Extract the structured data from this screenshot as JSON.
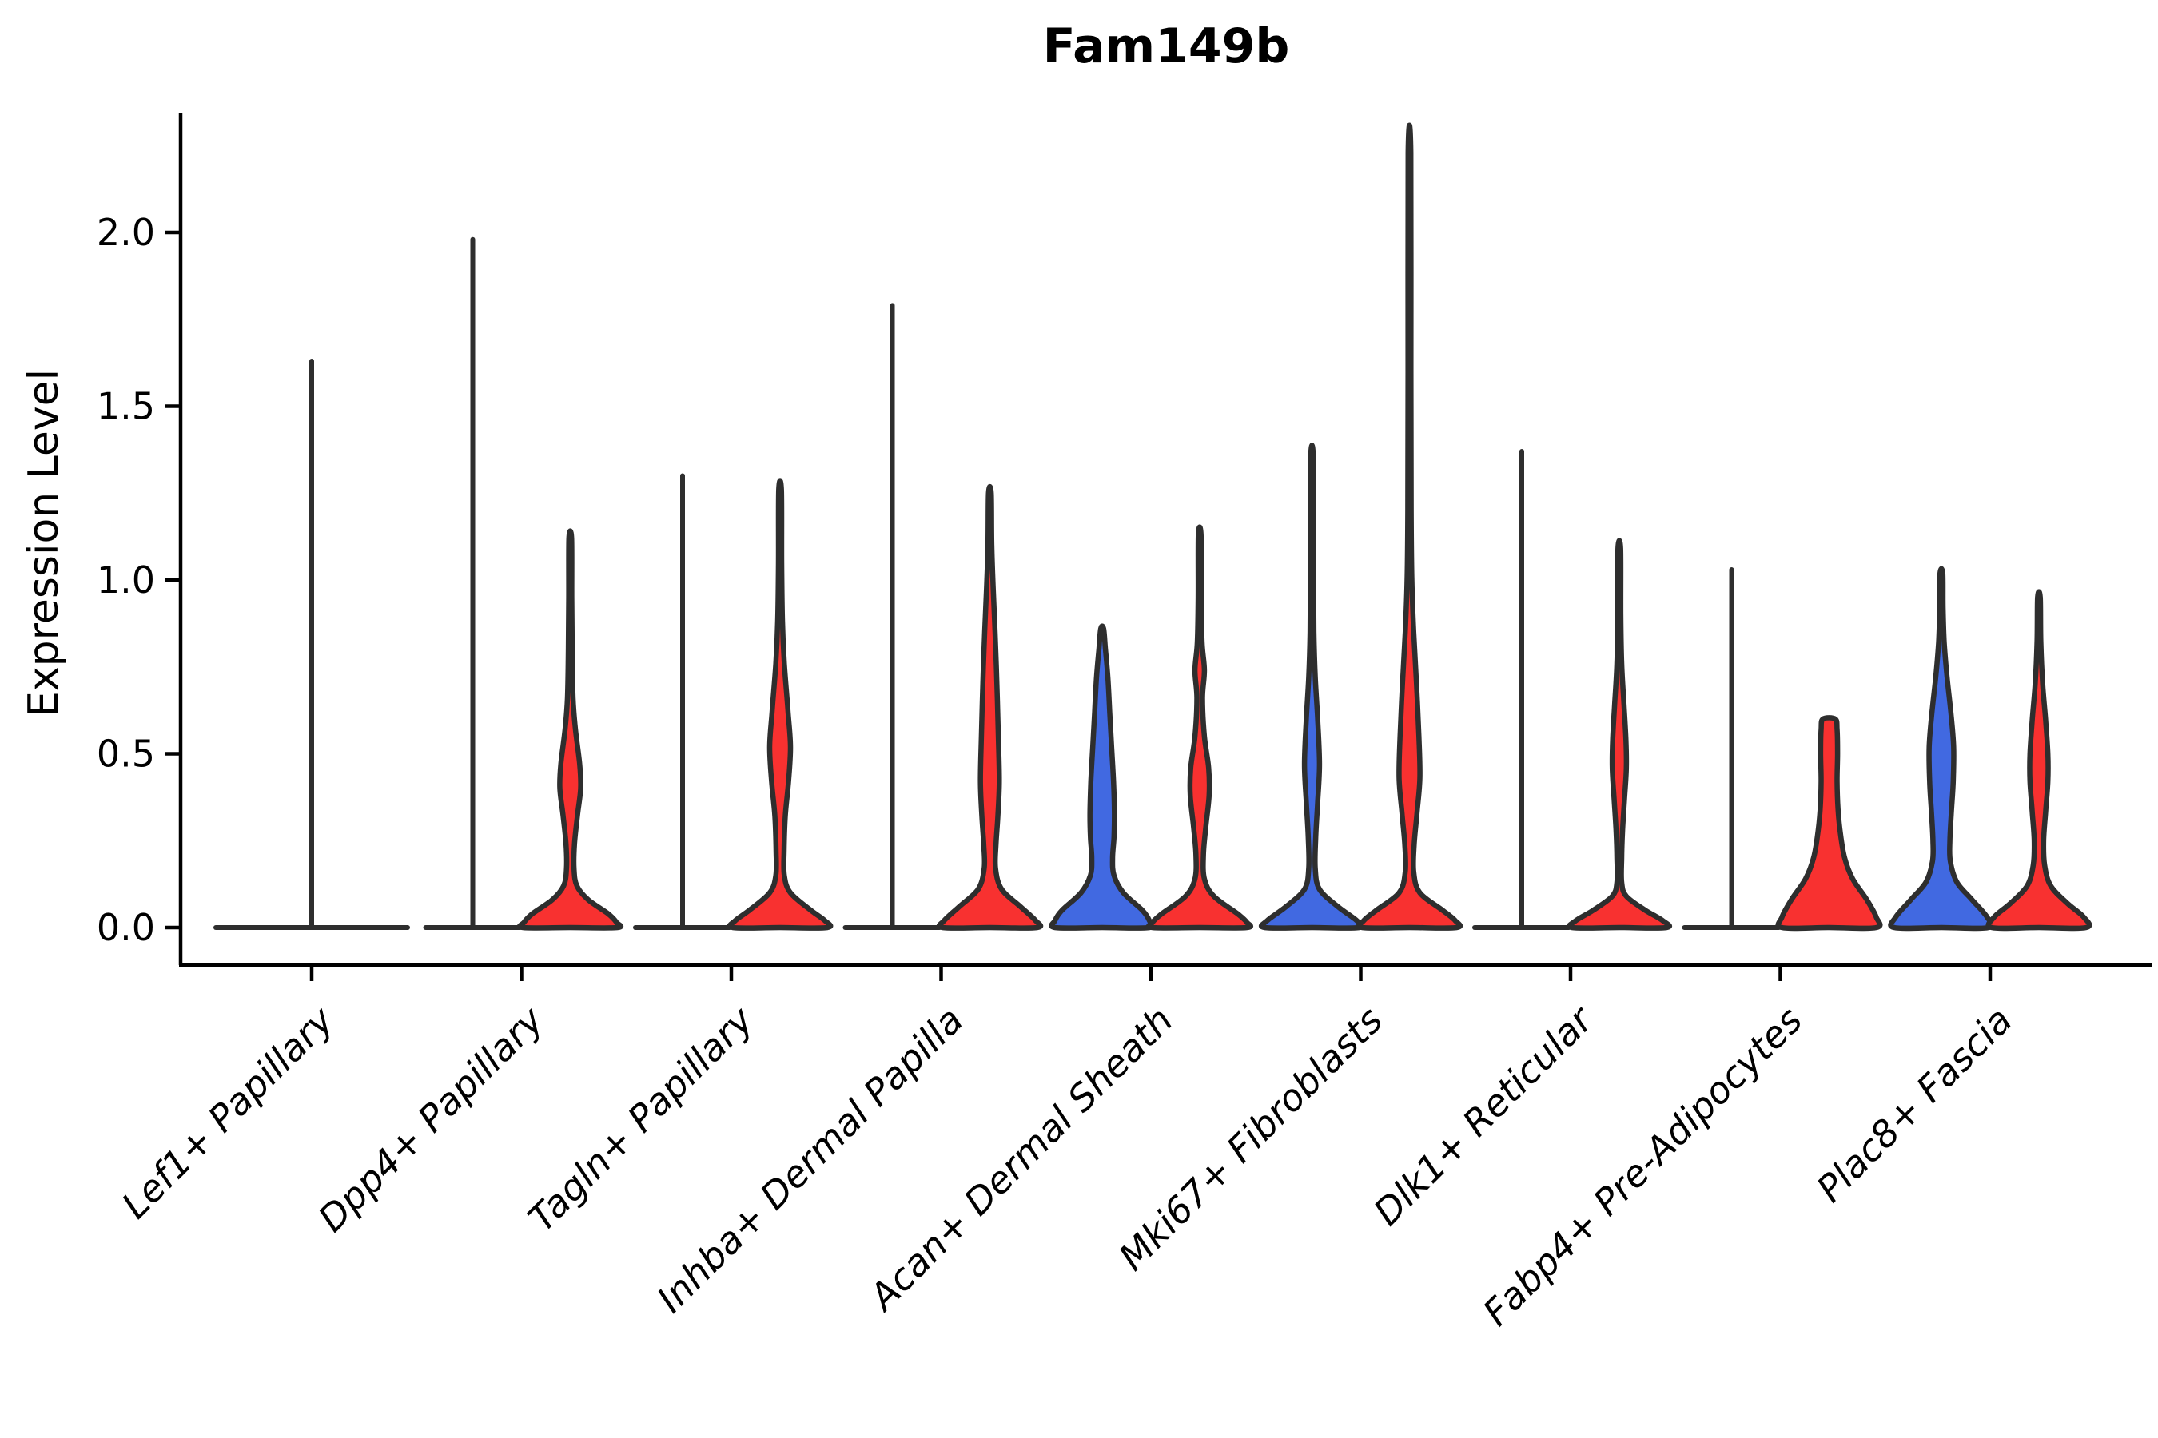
{
  "title": "Fam149b",
  "ylabel": "Expression Level",
  "colors": {
    "red": "#f83130",
    "blue": "#4169e1",
    "outline": "#2e2e2e",
    "axis": "#000000",
    "text": "#000000"
  },
  "chart_data": {
    "type": "violin",
    "title": "Fam149b",
    "ylabel": "Expression Level",
    "xlabel": "",
    "ylim": [
      -0.1,
      2.35
    ],
    "yticks": [
      0.0,
      0.5,
      1.0,
      1.5,
      2.0
    ],
    "ytick_labels": [
      "0.0",
      "0.5",
      "1.0",
      "1.5",
      "2.0"
    ],
    "grid": false,
    "legend": "none",
    "categories": [
      "Lef1+ Papillary",
      "Dpp4+ Papillary",
      "Tagln+ Papillary",
      "Inhba+ Dermal Papilla",
      "Acan+ Dermal Sheath",
      "Mki67+ Fibroblasts",
      "Dlk1+ Reticular",
      "Fabp4+ Pre-Adipocytes",
      "Plac8+ Fascia"
    ],
    "violins": [
      {
        "category": "Lef1+ Papillary",
        "slot": 0,
        "side": "single",
        "color": "none",
        "degenerate": true,
        "max_value": 1.63,
        "profile": null
      },
      {
        "category": "Dpp4+ Papillary",
        "slot": 1,
        "side": "left",
        "color": "none",
        "degenerate": true,
        "max_value": 1.98,
        "profile": null
      },
      {
        "category": "Dpp4+ Papillary",
        "slot": 1,
        "side": "right",
        "color": "red",
        "degenerate": false,
        "max_value": 1.12,
        "profile": [
          [
            1.12,
            0.028
          ],
          [
            0.95,
            0.032
          ],
          [
            0.8,
            0.04
          ],
          [
            0.66,
            0.06
          ],
          [
            0.57,
            0.11
          ],
          [
            0.47,
            0.2
          ],
          [
            0.4,
            0.22
          ],
          [
            0.32,
            0.15
          ],
          [
            0.24,
            0.09
          ],
          [
            0.17,
            0.08
          ],
          [
            0.12,
            0.14
          ],
          [
            0.08,
            0.38
          ],
          [
            0.04,
            0.8
          ],
          [
            0.015,
            0.98
          ],
          [
            0,
            1.0
          ]
        ]
      },
      {
        "category": "Tagln+ Papillary",
        "slot": 2,
        "side": "left",
        "color": "none",
        "degenerate": true,
        "max_value": 1.3,
        "profile": null
      },
      {
        "category": "Tagln+ Papillary",
        "slot": 2,
        "side": "right",
        "color": "red",
        "degenerate": false,
        "max_value": 1.26,
        "profile": [
          [
            1.26,
            0.028
          ],
          [
            1.05,
            0.034
          ],
          [
            0.88,
            0.05
          ],
          [
            0.76,
            0.09
          ],
          [
            0.62,
            0.17
          ],
          [
            0.52,
            0.22
          ],
          [
            0.42,
            0.18
          ],
          [
            0.32,
            0.11
          ],
          [
            0.22,
            0.085
          ],
          [
            0.15,
            0.09
          ],
          [
            0.1,
            0.22
          ],
          [
            0.05,
            0.65
          ],
          [
            0.02,
            0.95
          ],
          [
            0,
            1.0
          ]
        ]
      },
      {
        "category": "Inhba+ Dermal Papilla",
        "slot": 3,
        "side": "left",
        "color": "none",
        "degenerate": true,
        "max_value": 1.79,
        "profile": null
      },
      {
        "category": "Inhba+ Dermal Papilla",
        "slot": 3,
        "side": "right",
        "color": "red",
        "degenerate": false,
        "max_value": 1.25,
        "profile": [
          [
            1.25,
            0.028
          ],
          [
            1.1,
            0.04
          ],
          [
            0.98,
            0.07
          ],
          [
            0.85,
            0.11
          ],
          [
            0.7,
            0.15
          ],
          [
            0.55,
            0.18
          ],
          [
            0.42,
            0.2
          ],
          [
            0.32,
            0.17
          ],
          [
            0.24,
            0.13
          ],
          [
            0.17,
            0.12
          ],
          [
            0.11,
            0.25
          ],
          [
            0.06,
            0.65
          ],
          [
            0.02,
            0.97
          ],
          [
            0,
            1.0
          ]
        ]
      },
      {
        "category": "Acan+ Dermal Sheath",
        "slot": 4,
        "side": "left",
        "color": "blue",
        "degenerate": false,
        "max_value": 0.86,
        "profile": [
          [
            0.86,
            0.03
          ],
          [
            0.8,
            0.07
          ],
          [
            0.72,
            0.12
          ],
          [
            0.62,
            0.16
          ],
          [
            0.52,
            0.2
          ],
          [
            0.42,
            0.24
          ],
          [
            0.33,
            0.26
          ],
          [
            0.26,
            0.25
          ],
          [
            0.2,
            0.22
          ],
          [
            0.15,
            0.25
          ],
          [
            0.1,
            0.45
          ],
          [
            0.05,
            0.85
          ],
          [
            0.02,
            1.0
          ],
          [
            0,
            1.0
          ]
        ]
      },
      {
        "category": "Acan+ Dermal Sheath",
        "slot": 4,
        "side": "right",
        "color": "red",
        "degenerate": false,
        "max_value": 1.13,
        "profile": [
          [
            1.13,
            0.028
          ],
          [
            0.95,
            0.032
          ],
          [
            0.82,
            0.05
          ],
          [
            0.74,
            0.1
          ],
          [
            0.66,
            0.06
          ],
          [
            0.55,
            0.1
          ],
          [
            0.46,
            0.19
          ],
          [
            0.38,
            0.2
          ],
          [
            0.29,
            0.13
          ],
          [
            0.21,
            0.08
          ],
          [
            0.14,
            0.1
          ],
          [
            0.09,
            0.3
          ],
          [
            0.04,
            0.8
          ],
          [
            0.015,
            1.0
          ],
          [
            0,
            1.0
          ]
        ]
      },
      {
        "category": "Mki67+ Fibroblasts",
        "slot": 5,
        "side": "left",
        "color": "blue",
        "degenerate": false,
        "max_value": 1.35,
        "profile": [
          [
            1.35,
            0.028
          ],
          [
            1.05,
            0.03
          ],
          [
            0.85,
            0.04
          ],
          [
            0.72,
            0.07
          ],
          [
            0.6,
            0.12
          ],
          [
            0.47,
            0.16
          ],
          [
            0.36,
            0.12
          ],
          [
            0.26,
            0.08
          ],
          [
            0.17,
            0.07
          ],
          [
            0.11,
            0.16
          ],
          [
            0.06,
            0.55
          ],
          [
            0.02,
            0.95
          ],
          [
            0,
            1.0
          ]
        ]
      },
      {
        "category": "Mki67+ Fibroblasts",
        "slot": 5,
        "side": "right",
        "color": "red",
        "degenerate": false,
        "max_value": 2.23,
        "profile": [
          [
            2.23,
            0.028
          ],
          [
            1.6,
            0.03
          ],
          [
            1.2,
            0.035
          ],
          [
            1.0,
            0.05
          ],
          [
            0.85,
            0.09
          ],
          [
            0.7,
            0.15
          ],
          [
            0.55,
            0.2
          ],
          [
            0.43,
            0.22
          ],
          [
            0.33,
            0.16
          ],
          [
            0.24,
            0.1
          ],
          [
            0.16,
            0.09
          ],
          [
            0.1,
            0.22
          ],
          [
            0.05,
            0.7
          ],
          [
            0.02,
            0.97
          ],
          [
            0,
            1.0
          ]
        ]
      },
      {
        "category": "Dlk1+ Reticular",
        "slot": 6,
        "side": "left",
        "color": "none",
        "degenerate": true,
        "max_value": 1.37,
        "profile": null
      },
      {
        "category": "Dlk1+ Reticular",
        "slot": 6,
        "side": "right",
        "color": "red",
        "degenerate": false,
        "max_value": 1.09,
        "profile": [
          [
            1.09,
            0.028
          ],
          [
            0.9,
            0.032
          ],
          [
            0.76,
            0.05
          ],
          [
            0.64,
            0.1
          ],
          [
            0.54,
            0.14
          ],
          [
            0.46,
            0.15
          ],
          [
            0.37,
            0.11
          ],
          [
            0.28,
            0.07
          ],
          [
            0.2,
            0.05
          ],
          [
            0.13,
            0.05
          ],
          [
            0.09,
            0.15
          ],
          [
            0.05,
            0.55
          ],
          [
            0.02,
            0.92
          ],
          [
            0,
            1.0
          ]
        ]
      },
      {
        "category": "Fabp4+ Pre-Adipocytes",
        "slot": 7,
        "side": "left",
        "color": "none",
        "degenerate": true,
        "max_value": 1.03,
        "profile": null
      },
      {
        "category": "Fabp4+ Pre-Adipocytes",
        "slot": 7,
        "side": "right",
        "color": "red",
        "degenerate": false,
        "max_value": 0.6,
        "profile": [
          [
            0.6,
            0.13
          ],
          [
            0.57,
            0.17
          ],
          [
            0.5,
            0.18
          ],
          [
            0.42,
            0.17
          ],
          [
            0.34,
            0.19
          ],
          [
            0.27,
            0.24
          ],
          [
            0.2,
            0.33
          ],
          [
            0.14,
            0.5
          ],
          [
            0.08,
            0.8
          ],
          [
            0.03,
            1.0
          ],
          [
            0,
            1.0
          ]
        ]
      },
      {
        "category": "Plac8+ Fascia",
        "slot": 8,
        "side": "left",
        "color": "blue",
        "degenerate": false,
        "max_value": 1.02,
        "profile": [
          [
            1.02,
            0.028
          ],
          [
            0.92,
            0.035
          ],
          [
            0.82,
            0.06
          ],
          [
            0.72,
            0.12
          ],
          [
            0.62,
            0.2
          ],
          [
            0.52,
            0.26
          ],
          [
            0.42,
            0.25
          ],
          [
            0.33,
            0.21
          ],
          [
            0.25,
            0.18
          ],
          [
            0.19,
            0.19
          ],
          [
            0.13,
            0.33
          ],
          [
            0.08,
            0.65
          ],
          [
            0.03,
            0.97
          ],
          [
            0,
            1.0
          ]
        ]
      },
      {
        "category": "Plac8+ Fascia",
        "slot": 8,
        "side": "right",
        "color": "red",
        "degenerate": false,
        "max_value": 0.95,
        "profile": [
          [
            0.95,
            0.028
          ],
          [
            0.82,
            0.04
          ],
          [
            0.7,
            0.08
          ],
          [
            0.6,
            0.14
          ],
          [
            0.5,
            0.19
          ],
          [
            0.42,
            0.19
          ],
          [
            0.33,
            0.14
          ],
          [
            0.25,
            0.1
          ],
          [
            0.18,
            0.12
          ],
          [
            0.12,
            0.25
          ],
          [
            0.07,
            0.6
          ],
          [
            0.03,
            0.95
          ],
          [
            0,
            1.0
          ]
        ]
      }
    ]
  }
}
